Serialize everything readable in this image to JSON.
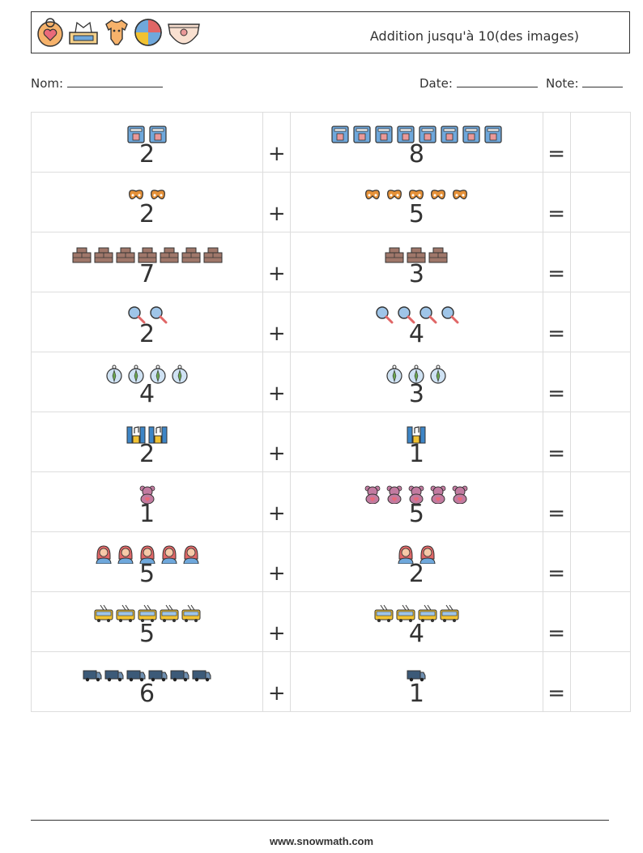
{
  "header": {
    "title": "Addition jusqu'à 10(des images)",
    "icons": [
      "baby-bib-icon",
      "tissue-box-icon",
      "onesie-icon",
      "beach-ball-icon",
      "diaper-icon"
    ]
  },
  "meta": {
    "name_label": "Nom:",
    "date_label": "Date:",
    "note_label": "Note:"
  },
  "operators": {
    "plus": "+",
    "equals": "="
  },
  "problems": [
    {
      "a": 2,
      "b": 8,
      "icon": "coffee-machine-icon"
    },
    {
      "a": 2,
      "b": 5,
      "icon": "pretzel-icon"
    },
    {
      "a": 7,
      "b": 3,
      "icon": "brick-wall-icon"
    },
    {
      "a": 2,
      "b": 4,
      "icon": "magnifying-glass-icon"
    },
    {
      "a": 4,
      "b": 3,
      "icon": "compass-icon"
    },
    {
      "a": 2,
      "b": 1,
      "icon": "speaker-system-icon"
    },
    {
      "a": 1,
      "b": 5,
      "icon": "teddy-bear-icon"
    },
    {
      "a": 5,
      "b": 2,
      "icon": "woman-avatar-icon"
    },
    {
      "a": 5,
      "b": 4,
      "icon": "trolleybus-icon"
    },
    {
      "a": 6,
      "b": 1,
      "icon": "delivery-van-icon"
    }
  ],
  "footer": {
    "website": "www.snowmath.com"
  }
}
